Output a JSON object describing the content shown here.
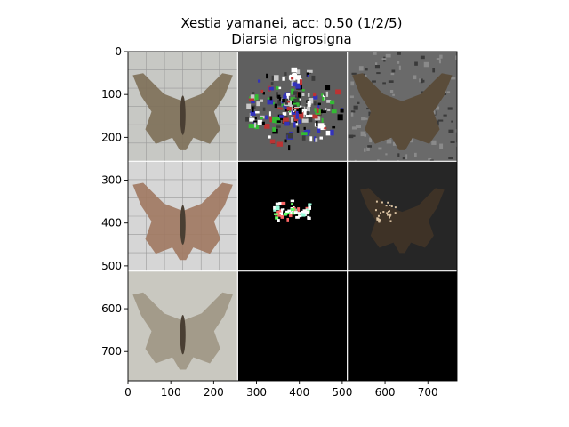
{
  "chart_data": {
    "type": "image-grid",
    "title": "Xestia yamanei, acc: 0.50 (1/2/5)",
    "subtitle": "Diarsia nigrosigna",
    "xlabel": "",
    "ylabel": "",
    "xlim": [
      0,
      768
    ],
    "ylim": [
      768,
      0
    ],
    "x_ticks": [
      0,
      100,
      200,
      300,
      400,
      500,
      600,
      700
    ],
    "y_ticks": [
      0,
      100,
      200,
      300,
      400,
      500,
      600,
      700
    ],
    "grid": {
      "rows": 3,
      "cols": 3,
      "cell_size": 256
    },
    "panels": [
      {
        "row": 0,
        "col": 0,
        "kind": "moth-photo",
        "background": "#c7c8c4",
        "wing": "#7d6f58",
        "grid_lines": true
      },
      {
        "row": 0,
        "col": 1,
        "kind": "noisy-saliency",
        "background": "#5f5f5f",
        "wing": "#e8e8e8"
      },
      {
        "row": 0,
        "col": 2,
        "kind": "masked-moth",
        "background": "#6a6a6a",
        "wing": "#5a4c3a"
      },
      {
        "row": 1,
        "col": 0,
        "kind": "moth-photo",
        "background": "#d6d6d6",
        "wing": "#a07860",
        "grid_lines": true
      },
      {
        "row": 1,
        "col": 1,
        "kind": "sparse-saliency",
        "background": "#000000",
        "wing": "#ffffff"
      },
      {
        "row": 1,
        "col": 2,
        "kind": "dark-masked-moth",
        "background": "#262626",
        "wing": "#3e3226"
      },
      {
        "row": 2,
        "col": 0,
        "kind": "moth-photo",
        "background": "#c9c8c0",
        "wing": "#9f9684",
        "grid_lines": false
      },
      {
        "row": 2,
        "col": 1,
        "kind": "empty",
        "background": "#000000"
      },
      {
        "row": 2,
        "col": 2,
        "kind": "empty",
        "background": "#000000"
      }
    ]
  }
}
